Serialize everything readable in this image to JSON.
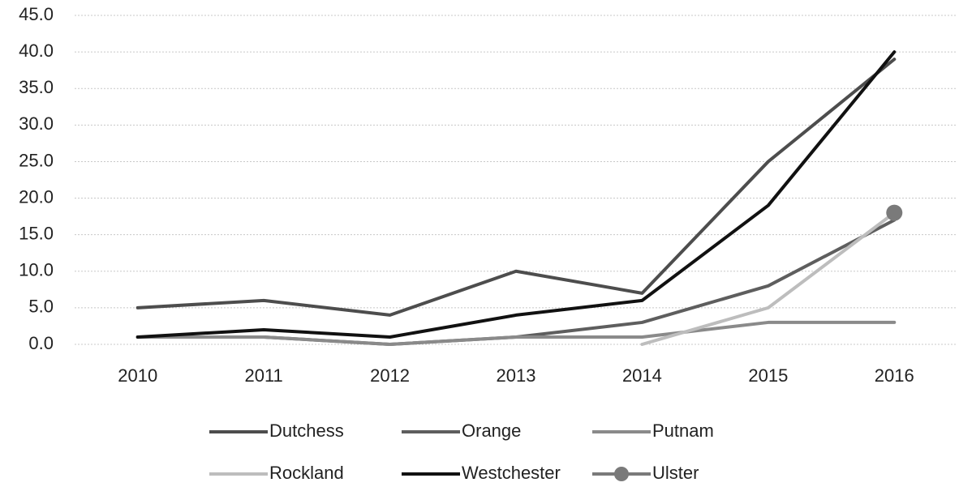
{
  "chart_data": {
    "type": "line",
    "categories": [
      "2010",
      "2011",
      "2012",
      "2013",
      "2014",
      "2015",
      "2016"
    ],
    "series": [
      {
        "name": "Dutchess",
        "color": "#4d4d4d",
        "values": [
          5,
          6,
          4,
          10,
          7,
          25,
          39
        ]
      },
      {
        "name": "Orange",
        "color": "#5e5e5e",
        "values": [
          1,
          1,
          0,
          1,
          3,
          8,
          17
        ]
      },
      {
        "name": "Putnam",
        "color": "#8a8a8a",
        "values": [
          1,
          1,
          0,
          1,
          1,
          3,
          3
        ]
      },
      {
        "name": "Rockland",
        "color": "#bdbdbd",
        "values": [
          null,
          null,
          null,
          null,
          0,
          5,
          18
        ]
      },
      {
        "name": "Westchester",
        "color": "#111111",
        "values": [
          1,
          2,
          1,
          4,
          6,
          19,
          40
        ]
      },
      {
        "name": "Ulster",
        "color": "#7a7a7a",
        "marker": true,
        "values": [
          null,
          null,
          null,
          null,
          null,
          null,
          18
        ]
      }
    ],
    "ylim": [
      0,
      45
    ],
    "yticks": [
      {
        "value": 0,
        "label": "0.0"
      },
      {
        "value": 5,
        "label": "5.0"
      },
      {
        "value": 10,
        "label": "10.0"
      },
      {
        "value": 15,
        "label": "15.0"
      },
      {
        "value": 20,
        "label": "20.0"
      },
      {
        "value": 25,
        "label": "25.0"
      },
      {
        "value": 30,
        "label": "30.0"
      },
      {
        "value": 35,
        "label": "35.0"
      },
      {
        "value": 40,
        "label": "40.0"
      },
      {
        "value": 45,
        "label": "45.0"
      }
    ],
    "grid": true,
    "legend": "bottom"
  }
}
